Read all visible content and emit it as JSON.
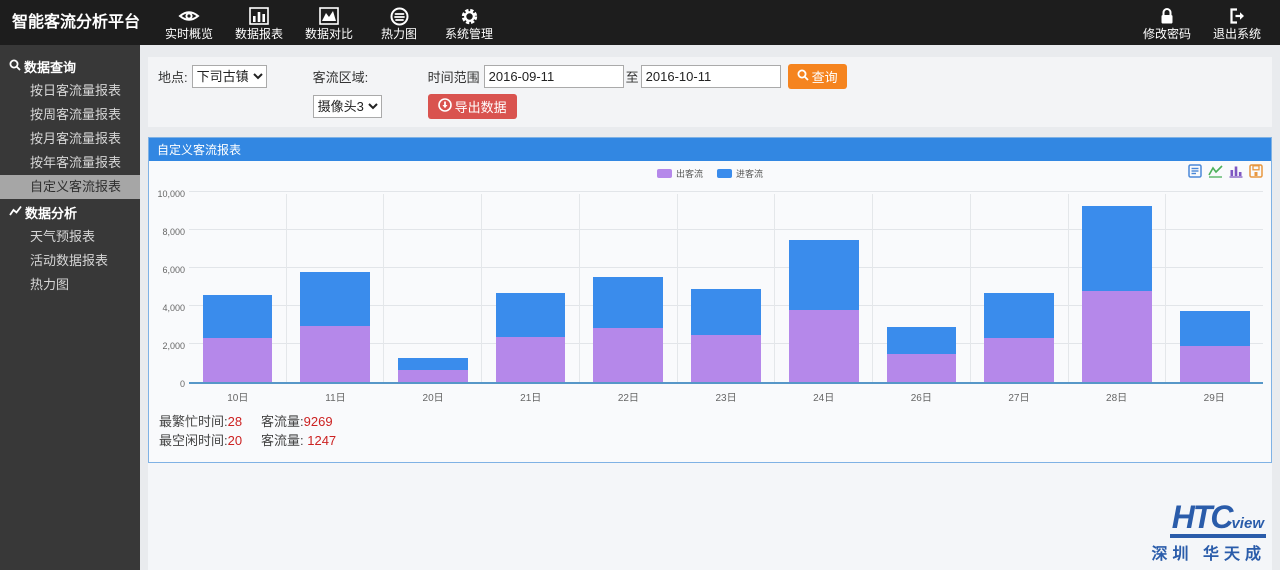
{
  "app": {
    "title": "智能客流分析平台"
  },
  "navbar": {
    "items": [
      {
        "label": "实时概览",
        "icon": "eye-icon"
      },
      {
        "label": "数据报表",
        "icon": "bar-report-icon"
      },
      {
        "label": "数据对比",
        "icon": "area-compare-icon"
      },
      {
        "label": "热力图",
        "icon": "heatmap-icon"
      },
      {
        "label": "系统管理",
        "icon": "gear-icon"
      }
    ],
    "right": [
      {
        "label": "修改密码",
        "icon": "lock-icon"
      },
      {
        "label": "退出系统",
        "icon": "logout-icon"
      }
    ]
  },
  "sidebar": {
    "items": [
      {
        "label": "数据查询",
        "type": "header",
        "icon": "search-icon"
      },
      {
        "label": "按日客流量报表",
        "type": "item"
      },
      {
        "label": "按周客流量报表",
        "type": "item"
      },
      {
        "label": "按月客流量报表",
        "type": "item"
      },
      {
        "label": "按年客流量报表",
        "type": "item"
      },
      {
        "label": "自定义客流报表",
        "type": "item",
        "active": true
      },
      {
        "label": "数据分析",
        "type": "header",
        "icon": "line-chart-icon"
      },
      {
        "label": "天气预报表",
        "type": "item"
      },
      {
        "label": "活动数据报表",
        "type": "item"
      },
      {
        "label": "热力图",
        "type": "item"
      }
    ]
  },
  "filters": {
    "location_label": "地点:",
    "location_value": "下司古镇",
    "area_label": "客流区域:",
    "area_value": "摄像头3",
    "time_label": "时间范围",
    "date_from": "2016-09-11",
    "to_label": "至",
    "date_to": "2016-10-11",
    "search_button": "查询",
    "export_button": "导出数据"
  },
  "panel": {
    "title": "自定义客流报表"
  },
  "chart_data": {
    "type": "bar",
    "stacked": true,
    "title": "自定义客流报表",
    "categories": [
      "10日",
      "11日",
      "20日",
      "21日",
      "22日",
      "23日",
      "24日",
      "26日",
      "27日",
      "28日",
      "29日"
    ],
    "series": [
      {
        "name": "出客流",
        "color": "#b588ea",
        "values": [
          2300,
          2950,
          640,
          2370,
          2840,
          2470,
          3790,
          1450,
          2320,
          4790,
          1900
        ]
      },
      {
        "name": "进客流",
        "color": "#3a8cec",
        "values": [
          2260,
          2860,
          607,
          2310,
          2690,
          2430,
          3680,
          1450,
          2360,
          4479,
          1840
        ]
      }
    ],
    "xlabel": "",
    "ylabel": "",
    "ylim": [
      0,
      10000
    ],
    "yticks": [
      0,
      2000,
      4000,
      6000,
      8000,
      10000
    ],
    "grid": true,
    "legend_position": "top-center"
  },
  "toolbox": {
    "icons": [
      "data-view-icon",
      "line-chart-switch-icon",
      "bar-chart-switch-icon",
      "save-image-icon"
    ],
    "colors": {
      "data_view": "#4a88d8",
      "line": "#4cb05a",
      "bar": "#7e57c2",
      "save": "#e8973f"
    }
  },
  "summary": {
    "busy_label": "最繁忙时间:",
    "busy_value": "28",
    "busy_count_label": "客流量:",
    "busy_count_value": "9269",
    "idle_label": "最空闲时间:",
    "idle_value": "20",
    "idle_count_label": "客流量:",
    "idle_count_value": " 1247"
  },
  "footer": {
    "logo_main": "HTC",
    "logo_sub": "view",
    "logo_caption": "深圳  华天成"
  }
}
